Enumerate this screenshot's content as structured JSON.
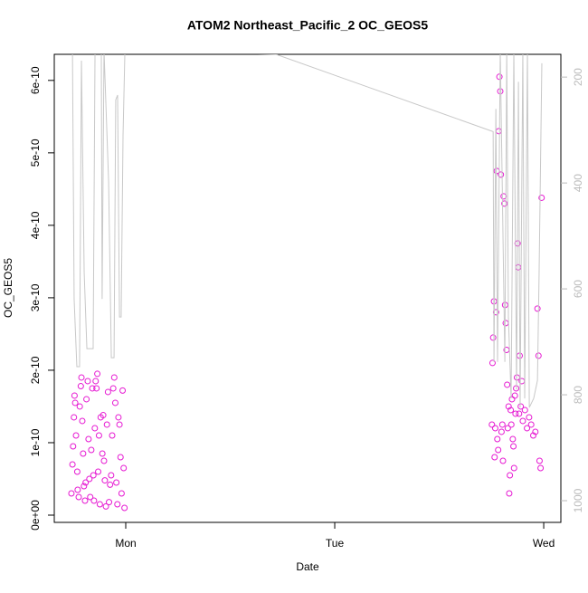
{
  "chart_data": {
    "type": "scatter",
    "title": "ATOM2 Northeast_Pacific_2 OC_GEOS5",
    "xlabel": "Date",
    "ylabel": "OC_GEOS5",
    "xlim": [
      0.658,
      3.082
    ],
    "xticks": [
      {
        "value": 1,
        "label": "Mon"
      },
      {
        "value": 2,
        "label": "Tue"
      },
      {
        "value": 3,
        "label": "Wed"
      }
    ],
    "ylim": [
      -1e-11,
      6.36e-10
    ],
    "yticks": [
      {
        "value": 0,
        "label": "0e+00"
      },
      {
        "value": 1e-10,
        "label": "1e-10"
      },
      {
        "value": 2e-10,
        "label": "2e-10"
      },
      {
        "value": 3e-10,
        "label": "3e-10"
      },
      {
        "value": 4e-10,
        "label": "4e-10"
      },
      {
        "value": 5e-10,
        "label": "5e-10"
      },
      {
        "value": 6e-10,
        "label": "6e-10"
      }
    ],
    "y2lim": [
      1041,
      157
    ],
    "y2ticks": [
      200,
      400,
      600,
      800,
      1000
    ],
    "y2color": "#bbbbbb",
    "series": [
      {
        "type": "scatter",
        "color": "#e619d2",
        "x": [
          0.74,
          0.745,
          0.748,
          0.752,
          0.755,
          0.758,
          0.762,
          0.768,
          0.77,
          0.775,
          0.78,
          0.785,
          0.788,
          0.792,
          0.796,
          0.8,
          0.805,
          0.808,
          0.812,
          0.818,
          0.822,
          0.826,
          0.83,
          0.835,
          0.84,
          0.845,
          0.848,
          0.852,
          0.856,
          0.86,
          0.864,
          0.868,
          0.872,
          0.876,
          0.88,
          0.888,
          0.892,
          0.896,
          0.9,
          0.905,
          0.91,
          0.915,
          0.92,
          0.925,
          0.93,
          0.935,
          0.94,
          0.945,
          0.95,
          0.955,
          0.96,
          0.965,
          0.97,
          0.975,
          0.98,
          0.985,
          0.99,
          0.994,
          2.752,
          2.755,
          2.758,
          2.762,
          2.765,
          2.768,
          2.772,
          2.775,
          2.778,
          2.782,
          2.785,
          2.788,
          2.792,
          2.795,
          2.798,
          2.802,
          2.805,
          2.808,
          2.812,
          2.815,
          2.818,
          2.822,
          2.825,
          2.828,
          2.832,
          2.835,
          2.838,
          2.842,
          2.845,
          2.848,
          2.852,
          2.855,
          2.858,
          2.862,
          2.865,
          2.868,
          2.872,
          2.875,
          2.878,
          2.882,
          2.885,
          2.89,
          2.895,
          2.9,
          2.91,
          2.92,
          2.93,
          2.94,
          2.95,
          2.96,
          2.97,
          2.975,
          2.98,
          2.985,
          2.99
        ],
        "values": [
          3e-11,
          7e-11,
          9.5e-11,
          1.35e-10,
          1.65e-10,
          1.55e-10,
          1.1e-10,
          6e-11,
          3.5e-11,
          2.5e-11,
          1.5e-10,
          1.78e-10,
          1.9e-10,
          1.3e-10,
          8.5e-11,
          4e-11,
          2e-11,
          4.5e-11,
          1.6e-10,
          1.85e-10,
          1.05e-10,
          5e-11,
          2.5e-11,
          9e-11,
          1.75e-10,
          5.5e-11,
          2e-11,
          1.2e-10,
          1.85e-10,
          1.75e-10,
          1.95e-10,
          6e-11,
          1.1e-10,
          1.5e-11,
          1.35e-10,
          8.5e-11,
          1.38e-10,
          7.5e-11,
          4.8e-11,
          1.2e-11,
          1.25e-10,
          1.7e-10,
          1.8e-11,
          4.2e-11,
          5.5e-11,
          1.1e-10,
          1.75e-10,
          1.9e-10,
          1.55e-10,
          4.5e-11,
          1.5e-11,
          1.35e-10,
          1.25e-10,
          8e-11,
          3e-11,
          1.72e-10,
          6.5e-11,
          1e-11,
          1.25e-10,
          2.1e-10,
          2.45e-10,
          2.95e-10,
          8e-11,
          1.2e-10,
          2.8e-10,
          4.75e-10,
          1.05e-10,
          9e-11,
          5.3e-10,
          6.05e-10,
          5.85e-10,
          4.7e-10,
          1.15e-10,
          1.25e-10,
          7.5e-11,
          4.4e-10,
          4.3e-10,
          2.9e-10,
          2.65e-10,
          2.28e-10,
          1.8e-10,
          1.2e-10,
          1.5e-10,
          3e-11,
          5.5e-11,
          1.45e-10,
          1.25e-10,
          1.6e-10,
          1.05e-10,
          9.5e-11,
          6.5e-11,
          1.65e-10,
          1.4e-10,
          1.75e-10,
          1.9e-10,
          3.75e-10,
          3.42e-10,
          1.4e-10,
          2.2e-10,
          1.5e-10,
          1.85e-10,
          1.3e-10,
          1.45e-10,
          1.2e-10,
          1.35e-10,
          1.25e-10,
          1.1e-10,
          1.15e-10,
          2.85e-10,
          2.2e-10,
          7.5e-11,
          6.5e-11,
          4.38e-10
        ]
      },
      {
        "type": "line",
        "axis": "y2",
        "color": "#c8c8c8",
        "x": [
          0.745,
          0.753,
          0.766,
          0.779,
          0.788,
          0.801,
          0.814,
          0.827,
          0.844,
          0.853,
          0.883,
          0.887,
          0.896,
          0.918,
          0.931,
          0.944,
          0.952,
          0.961,
          0.97,
          0.978,
          0.987,
          0.996,
          1.719,
          2.758,
          2.762,
          2.771,
          2.779,
          2.792,
          2.814,
          2.823,
          2.831,
          2.844,
          2.857,
          2.87,
          2.879,
          2.887,
          2.9,
          2.909,
          2.922,
          2.931,
          2.952,
          2.97,
          2.978,
          2.991
        ],
        "values": [
          150,
          619,
          747,
          747,
          169,
          568,
          713,
          713,
          713,
          150,
          150,
          619,
          150,
          397,
          730,
          730,
          243,
          234,
          653,
          653,
          311,
          150,
          157,
          303,
          738,
          260,
          738,
          150,
          738,
          150,
          653,
          807,
          150,
          790,
          209,
          824,
          150,
          807,
          150,
          824,
          807,
          773,
          568,
          174
        ]
      }
    ]
  }
}
